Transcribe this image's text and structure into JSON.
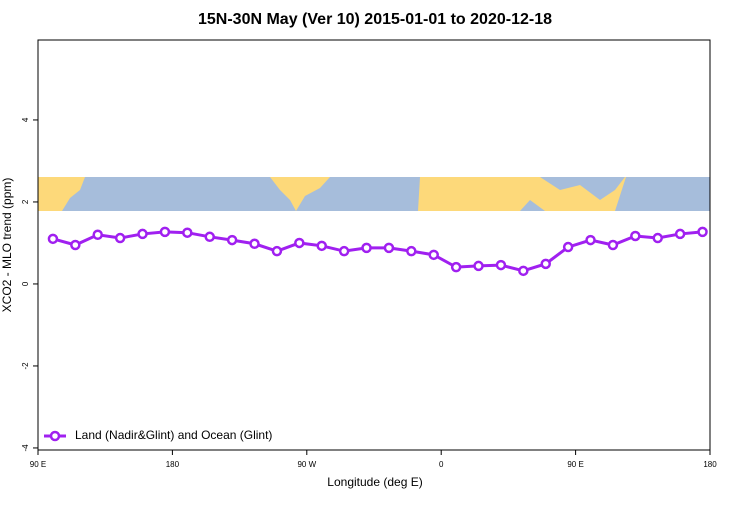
{
  "chart_data": {
    "type": "line",
    "title": "15N-30N May (Ver 10)   2015-01-01 to 2020-12-18",
    "xlabel": "Longitude (deg E)",
    "ylabel": "XCO2 - MLO trend (ppm)",
    "x": [
      100,
      115,
      130,
      145,
      160,
      175,
      190,
      205,
      220,
      235,
      250,
      265,
      280,
      295,
      310,
      325,
      340,
      355,
      370,
      385,
      400,
      415,
      430,
      445,
      460,
      475,
      490,
      505,
      520,
      535
    ],
    "series": [
      {
        "name": "Land (Nadir&Glint) and Ocean (Glint)",
        "color": "#a020f0",
        "values": [
          1.1,
          0.95,
          1.2,
          1.12,
          1.22,
          1.27,
          1.25,
          1.15,
          1.07,
          0.98,
          0.8,
          1.0,
          0.93,
          0.8,
          0.88,
          0.88,
          0.8,
          0.71,
          0.41,
          0.44,
          0.46,
          0.32,
          0.49,
          0.9,
          1.07,
          0.95,
          1.17,
          1.12,
          1.22,
          1.27
        ]
      }
    ],
    "xlim": [
      90,
      540
    ],
    "xticks": [
      {
        "value": 90,
        "label": "90 E"
      },
      {
        "value": 180,
        "label": "180"
      },
      {
        "value": 270,
        "label": "90 W"
      },
      {
        "value": 360,
        "label": "0"
      },
      {
        "value": 450,
        "label": "90 E"
      },
      {
        "value": 540,
        "label": "180"
      }
    ],
    "ylim": [
      -4.05,
      5.95
    ],
    "yticks": [
      -4,
      -2,
      0,
      2,
      4
    ],
    "legend": "bottomleft"
  }
}
